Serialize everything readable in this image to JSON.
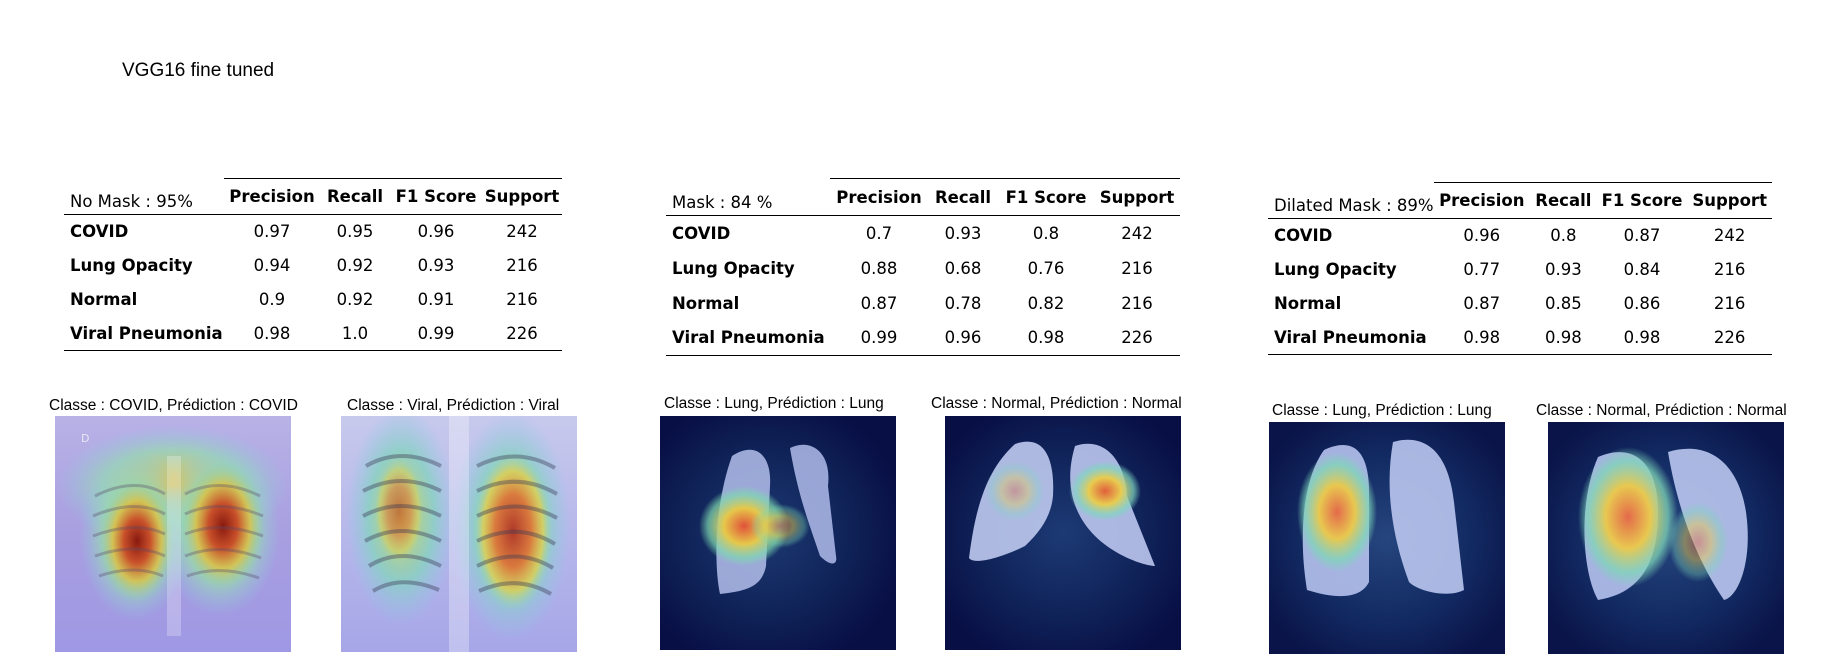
{
  "title": "VGG16 fine tuned",
  "columns": [
    "Precision",
    "Recall",
    "F1 Score",
    "Support"
  ],
  "panels": [
    {
      "table_label": "No Mask : 95%",
      "rows": [
        {
          "label": "COVID",
          "precision": "0.97",
          "recall": "0.95",
          "f1": "0.96",
          "support": "242"
        },
        {
          "label": "Lung Opacity",
          "precision": "0.94",
          "recall": "0.92",
          "f1": "0.93",
          "support": "216"
        },
        {
          "label": "Normal",
          "precision": "0.9",
          "recall": "0.92",
          "f1": "0.91",
          "support": "216"
        },
        {
          "label": "Viral Pneumonia",
          "precision": "0.98",
          "recall": "1.0",
          "f1": "0.99",
          "support": "226"
        }
      ],
      "images": [
        {
          "caption": "Classe : COVID, Prédiction : COVID",
          "style": "xray"
        },
        {
          "caption": "Classe : Viral, Prédiction : Viral",
          "style": "xray"
        }
      ]
    },
    {
      "table_label": "Mask : 84 %",
      "rows": [
        {
          "label": "COVID",
          "precision": "0.7",
          "recall": "0.93",
          "f1": "0.8",
          "support": "242"
        },
        {
          "label": "Lung Opacity",
          "precision": "0.88",
          "recall": "0.68",
          "f1": "0.76",
          "support": "216"
        },
        {
          "label": "Normal",
          "precision": "0.87",
          "recall": "0.78",
          "f1": "0.82",
          "support": "216"
        },
        {
          "label": "Viral Pneumonia",
          "precision": "0.99",
          "recall": "0.96",
          "f1": "0.98",
          "support": "226"
        }
      ],
      "images": [
        {
          "caption": "Classe : Lung, Prédiction : Lung",
          "style": "mask"
        },
        {
          "caption": "Classe : Normal, Prédiction : Normal",
          "style": "mask"
        }
      ]
    },
    {
      "table_label": "Dilated Mask : 89%",
      "rows": [
        {
          "label": "COVID",
          "precision": "0.96",
          "recall": "0.8",
          "f1": "0.87",
          "support": "242"
        },
        {
          "label": "Lung Opacity",
          "precision": "0.77",
          "recall": "0.93",
          "f1": "0.84",
          "support": "216"
        },
        {
          "label": "Normal",
          "precision": "0.87",
          "recall": "0.85",
          "f1": "0.86",
          "support": "216"
        },
        {
          "label": "Viral Pneumonia",
          "precision": "0.98",
          "recall": "0.98",
          "f1": "0.98",
          "support": "226"
        }
      ],
      "images": [
        {
          "caption": "Classe : Lung, Prédiction : Lung",
          "style": "dilated"
        },
        {
          "caption": "Classe : Normal, Prédiction : Normal",
          "style": "dilated"
        }
      ]
    }
  ]
}
